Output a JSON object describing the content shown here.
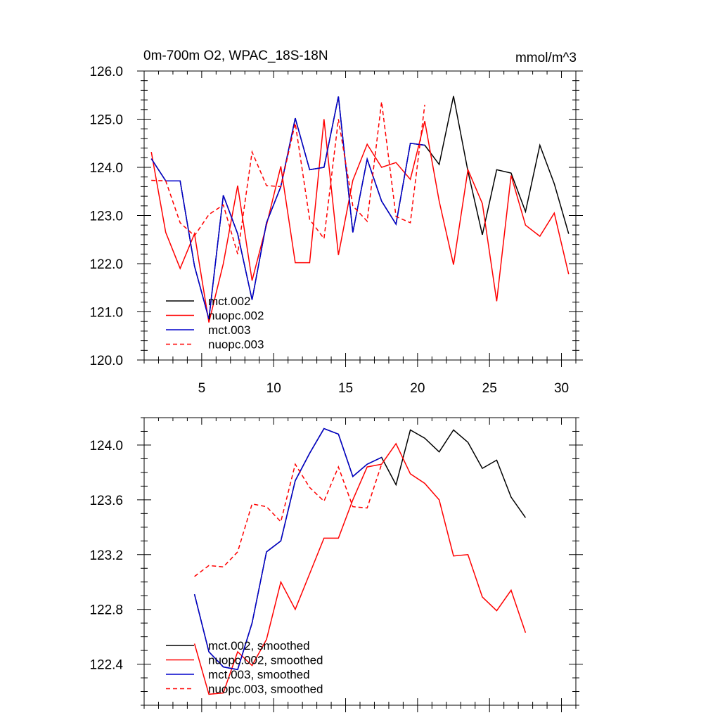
{
  "chart_data": [
    {
      "type": "line",
      "title": "0m-700m O2, WPAC_18S-18N",
      "units": "mmol/m^3",
      "xlim": [
        1,
        31
      ],
      "ylim": [
        120.0,
        126.0
      ],
      "xticks": [
        5,
        10,
        15,
        20,
        25,
        30
      ],
      "xtick_labels": [
        "5",
        "10",
        "15",
        "20",
        "25",
        "30"
      ],
      "yticks": [
        120.0,
        121.0,
        122.0,
        123.0,
        124.0,
        125.0,
        126.0
      ],
      "ytick_labels": [
        "120.0",
        "121.0",
        "122.0",
        "123.0",
        "124.0",
        "125.0",
        "126.0"
      ],
      "legend_position": "bottom-left",
      "series": [
        {
          "name": "mct.002",
          "color": "#000000",
          "dash": "solid",
          "x": [
            1.5,
            2.5,
            3.5,
            4.5,
            5.5,
            6.5,
            7.5,
            8.5,
            9.5,
            10.5,
            11.5,
            12.5,
            13.5,
            14.5,
            15.5,
            16.5,
            17.5,
            18.5,
            19.5,
            20.5,
            21.5,
            22.5,
            23.5,
            24.5,
            25.5,
            26.5,
            27.5,
            28.5,
            29.5,
            30.5
          ],
          "values": [
            124.18,
            123.72,
            123.72,
            121.95,
            120.85,
            123.42,
            122.62,
            121.25,
            122.85,
            123.6,
            125.02,
            123.95,
            124.0,
            125.47,
            122.65,
            124.17,
            123.3,
            122.82,
            124.5,
            124.46,
            124.06,
            125.48,
            123.92,
            122.6,
            123.95,
            123.88,
            123.08,
            124.46,
            123.66,
            122.62
          ]
        },
        {
          "name": "nuopc.002",
          "color": "#ff0000",
          "dash": "solid",
          "x": [
            1.5,
            2.5,
            3.5,
            4.5,
            5.5,
            6.5,
            7.5,
            8.5,
            9.5,
            10.5,
            11.5,
            12.5,
            13.5,
            14.5,
            15.5,
            16.5,
            17.5,
            18.5,
            19.5,
            20.5,
            21.5,
            22.5,
            23.5,
            24.5,
            25.5,
            26.5,
            27.5,
            28.5,
            29.5,
            30.5
          ],
          "values": [
            124.32,
            122.65,
            121.9,
            122.62,
            120.78,
            122.0,
            123.62,
            121.65,
            122.8,
            124.02,
            122.02,
            122.02,
            125.0,
            122.18,
            123.73,
            124.48,
            124.0,
            124.1,
            123.75,
            124.96,
            123.3,
            121.98,
            123.95,
            123.25,
            121.22,
            123.83,
            122.8,
            122.57,
            123.05,
            121.78
          ]
        },
        {
          "name": "mct.003",
          "color": "#0000cc",
          "dash": "solid",
          "x": [
            1.5,
            2.5,
            3.5,
            4.5,
            5.5,
            6.5,
            7.5,
            8.5,
            9.5,
            10.5,
            11.5,
            12.5,
            13.5,
            14.5,
            15.5,
            16.5,
            17.5,
            18.5,
            19.5,
            20.5
          ],
          "values": [
            124.18,
            123.72,
            123.72,
            121.95,
            120.85,
            123.42,
            122.62,
            121.25,
            122.85,
            123.6,
            125.02,
            123.95,
            124.0,
            125.47,
            122.65,
            124.17,
            123.3,
            122.82,
            124.5,
            124.46
          ]
        },
        {
          "name": "nuopc.003",
          "color": "#ff0000",
          "dash": "dashed",
          "x": [
            1.5,
            2.5,
            3.5,
            4.5,
            5.5,
            6.5,
            7.5,
            8.5,
            9.5,
            10.5,
            11.5,
            12.5,
            13.5,
            14.5,
            15.5,
            16.5,
            17.5,
            18.5,
            19.5,
            20.5
          ],
          "values": [
            123.73,
            123.72,
            122.85,
            122.58,
            123.02,
            123.22,
            122.2,
            124.32,
            123.62,
            123.6,
            124.92,
            122.92,
            122.52,
            125.0,
            123.2,
            122.88,
            125.36,
            122.98,
            122.85,
            125.3
          ]
        }
      ]
    },
    {
      "type": "line",
      "title": "",
      "xlim": [
        1,
        31
      ],
      "ylim": [
        122.1,
        124.2
      ],
      "xticks": [
        5,
        10,
        15,
        20,
        25,
        30
      ],
      "xtick_labels": [
        "",
        "",
        "",
        "",
        "",
        ""
      ],
      "yticks": [
        122.4,
        122.8,
        123.2,
        123.6,
        124.0
      ],
      "ytick_labels": [
        "122.4",
        "122.8",
        "123.2",
        "123.6",
        "124.0"
      ],
      "legend_position": "bottom-left",
      "series": [
        {
          "name": "mct.002, smoothed",
          "color": "#000000",
          "dash": "solid",
          "x": [
            4.5,
            5.5,
            6.5,
            7.5,
            8.5,
            9.5,
            10.5,
            11.5,
            12.5,
            13.5,
            14.5,
            15.5,
            16.5,
            17.5,
            18.5,
            19.5,
            20.5,
            21.5,
            22.5,
            23.5,
            24.5,
            25.5,
            26.5,
            27.5
          ],
          "values": [
            122.91,
            122.49,
            122.38,
            122.36,
            122.7,
            123.22,
            123.3,
            123.74,
            123.94,
            124.12,
            124.08,
            123.77,
            123.86,
            123.91,
            123.71,
            124.11,
            124.05,
            123.95,
            124.11,
            124.02,
            123.83,
            123.89,
            123.62,
            123.47
          ]
        },
        {
          "name": "nuopc.002, smoothed",
          "color": "#ff0000",
          "dash": "solid",
          "x": [
            4.5,
            5.5,
            6.5,
            7.5,
            8.5,
            9.5,
            10.5,
            11.5,
            12.5,
            13.5,
            14.5,
            15.5,
            16.5,
            17.5,
            18.5,
            19.5,
            20.5,
            21.5,
            22.5,
            23.5,
            24.5,
            25.5,
            26.5,
            27.5
          ],
          "values": [
            122.55,
            122.18,
            122.19,
            122.49,
            122.39,
            122.58,
            123.0,
            122.8,
            123.06,
            123.32,
            123.32,
            123.6,
            123.84,
            123.86,
            124.01,
            123.79,
            123.72,
            123.6,
            123.19,
            123.2,
            122.89,
            122.79,
            122.94,
            122.63
          ]
        },
        {
          "name": "mct.003, smoothed",
          "color": "#0000cc",
          "dash": "solid",
          "x": [
            4.5,
            5.5,
            6.5,
            7.5,
            8.5,
            9.5,
            10.5,
            11.5,
            12.5,
            13.5,
            14.5,
            15.5,
            16.5,
            17.5
          ],
          "values": [
            122.91,
            122.49,
            122.38,
            122.36,
            122.7,
            123.22,
            123.3,
            123.74,
            123.94,
            124.12,
            124.08,
            123.77,
            123.86,
            123.91
          ]
        },
        {
          "name": "nuopc.003, smoothed",
          "color": "#ff0000",
          "dash": "dashed",
          "x": [
            4.5,
            5.5,
            6.5,
            7.5,
            8.5,
            9.5,
            10.5,
            11.5,
            12.5,
            13.5,
            14.5,
            15.5,
            16.5,
            17.5
          ],
          "values": [
            123.04,
            123.12,
            123.11,
            123.22,
            123.57,
            123.55,
            123.44,
            123.86,
            123.69,
            123.59,
            123.84,
            123.55,
            123.54,
            123.86
          ]
        }
      ]
    }
  ]
}
